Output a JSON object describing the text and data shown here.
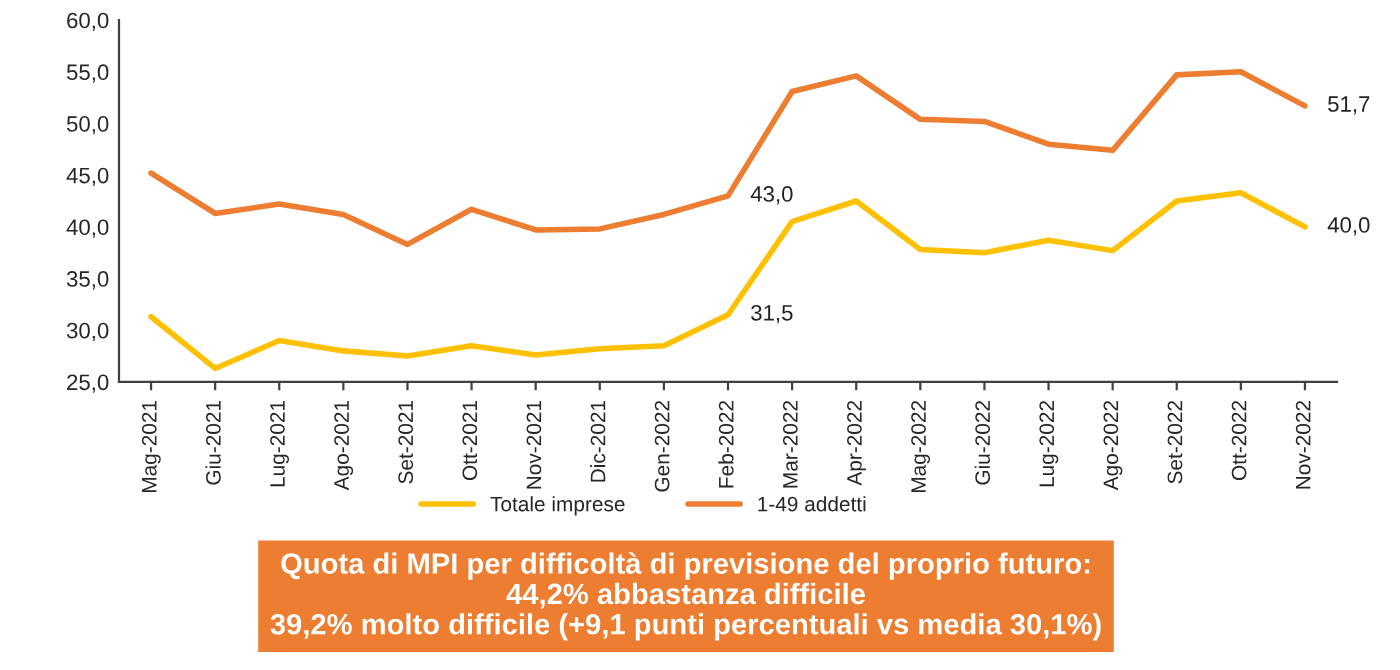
{
  "chart_data": {
    "type": "line",
    "categories": [
      "Mag-2021",
      "Giu-2021",
      "Lug-2021",
      "Ago-2021",
      "Set-2021",
      "Ott-2021",
      "Nov-2021",
      "Dic-2021",
      "Gen-2022",
      "Feb-2022",
      "Mar-2022",
      "Apr-2022",
      "Mag-2022",
      "Giu-2022",
      "Lug-2022",
      "Ago-2022",
      "Set-2022",
      "Ott-2022",
      "Nov-2022"
    ],
    "series": [
      {
        "name": "Totale imprese",
        "color": "#ffc000",
        "values": [
          31.3,
          26.3,
          29.0,
          28.0,
          27.5,
          28.5,
          27.6,
          28.2,
          28.5,
          31.5,
          40.5,
          42.5,
          37.8,
          37.5,
          38.7,
          37.7,
          42.5,
          43.3,
          40.0
        ],
        "value_labels": [
          null,
          null,
          null,
          null,
          null,
          null,
          null,
          null,
          null,
          "31,5",
          null,
          null,
          null,
          null,
          null,
          null,
          null,
          null,
          "40,0"
        ]
      },
      {
        "name": "1-49 addetti",
        "color": "#ed7d31",
        "values": [
          45.2,
          41.3,
          42.2,
          41.2,
          38.3,
          41.7,
          39.7,
          39.8,
          41.2,
          43.0,
          53.1,
          54.6,
          50.4,
          50.2,
          48.0,
          47.4,
          54.7,
          55.0,
          51.7
        ],
        "value_labels": [
          null,
          null,
          null,
          null,
          null,
          null,
          null,
          null,
          null,
          "43,0",
          null,
          null,
          null,
          null,
          null,
          null,
          null,
          null,
          "51,7"
        ]
      }
    ],
    "ylim": [
      25,
      60
    ],
    "yticks": [
      {
        "value": 25,
        "label": "25,0"
      },
      {
        "value": 30,
        "label": "30,0"
      },
      {
        "value": 35,
        "label": "35,0"
      },
      {
        "value": 40,
        "label": "40,0"
      },
      {
        "value": 45,
        "label": "45,0"
      },
      {
        "value": 50,
        "label": "50,0"
      },
      {
        "value": 55,
        "label": "55,0"
      },
      {
        "value": 60,
        "label": "60,0"
      }
    ],
    "grid": false,
    "legend": "bottom",
    "marker": "none",
    "line_style": "solid",
    "annotations": [
      "Quota di MPI per difficoltà di previsione del proprio futuro:",
      "44,2% abbastanza difficile",
      "39,2% molto difficile (+9,1 punti percentuali vs media 30,1%)"
    ]
  }
}
